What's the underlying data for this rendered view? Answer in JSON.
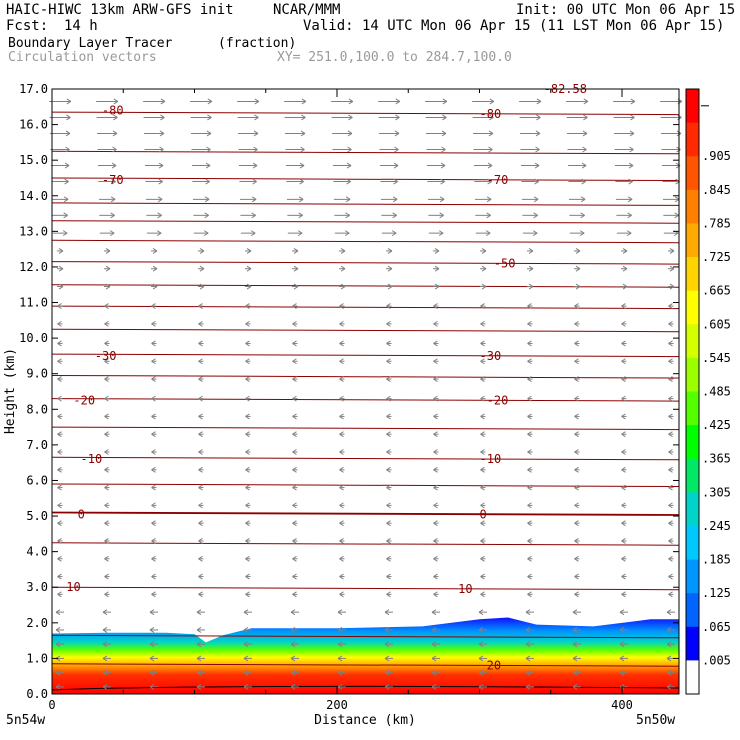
{
  "header": {
    "model": "HAIC-HIWC 13km ARW-GFS init",
    "center": "NCAR/MMM",
    "init": "Init: 00 UTC Mon 06 Apr 15",
    "fcst_label": "Fcst:",
    "fcst_value": "14 h",
    "valid": "Valid: 14 UTC Mon 06 Apr 15 (11 LST Mon 06 Apr 15)",
    "field": "Boundary Layer Tracer",
    "field_units": "(fraction)",
    "overlay": "Circulation vectors",
    "xy": "XY= 251.0,100.0 to 284.7,100.0"
  },
  "chart_data": {
    "type": "heatmap",
    "xlabel": "Distance (km)",
    "ylabel": "Height (km)",
    "xlim": [
      0,
      440
    ],
    "ylim": [
      0,
      17
    ],
    "x_ticks": [
      0,
      200,
      400
    ],
    "y_ticks": [
      "0.0",
      "1.0",
      "2.0",
      "3.0",
      "4.0",
      "5.0",
      "6.0",
      "7.0",
      "8.0",
      "9.0",
      "10.0",
      "11.0",
      "12.0",
      "13.0",
      "14.0",
      "15.0",
      "16.0",
      "17.0"
    ],
    "x_left_label": "5n54w",
    "x_right_label": "5n50w",
    "colorbar": {
      "labels": [
        ".905",
        ".845",
        ".785",
        ".725",
        ".665",
        ".605",
        ".545",
        ".485",
        ".425",
        ".365",
        ".305",
        ".245",
        ".185",
        ".125",
        ".065",
        ".005"
      ],
      "colors": [
        "#ff0000",
        "#ff2a00",
        "#ff5500",
        "#ff7f00",
        "#ffaa00",
        "#ffd400",
        "#ffff00",
        "#d4ff00",
        "#9cff00",
        "#54ff00",
        "#00ff00",
        "#00e866",
        "#00d4c8",
        "#00c8ff",
        "#0096ff",
        "#0064ff",
        "#0000ff",
        "#ffffff"
      ]
    },
    "tracer_top_km": [
      [
        0,
        1.7
      ],
      [
        40,
        1.72
      ],
      [
        80,
        1.72
      ],
      [
        100,
        1.68
      ],
      [
        108,
        1.45
      ],
      [
        120,
        1.65
      ],
      [
        140,
        1.85
      ],
      [
        200,
        1.85
      ],
      [
        260,
        1.9
      ],
      [
        300,
        2.1
      ],
      [
        320,
        2.15
      ],
      [
        340,
        1.95
      ],
      [
        380,
        1.9
      ],
      [
        420,
        2.1
      ],
      [
        440,
        2.1
      ]
    ],
    "isotherm_labels": [
      {
        "text": "-82.58",
        "x": 345,
        "y": 17.0
      },
      {
        "text": "-80",
        "x": 35,
        "y": 16.4
      },
      {
        "text": "-80",
        "x": 300,
        "y": 16.3
      },
      {
        "text": "-70",
        "x": 35,
        "y": 14.45
      },
      {
        "text": "-70",
        "x": 305,
        "y": 14.45
      },
      {
        "text": "-50",
        "x": 310,
        "y": 12.1
      },
      {
        "text": "-30",
        "x": 30,
        "y": 9.5
      },
      {
        "text": "-30",
        "x": 300,
        "y": 9.5
      },
      {
        "text": "-20",
        "x": 15,
        "y": 8.25
      },
      {
        "text": "-20",
        "x": 305,
        "y": 8.25
      },
      {
        "text": "-10",
        "x": 20,
        "y": 6.6
      },
      {
        "text": "-10",
        "x": 300,
        "y": 6.6
      },
      {
        "text": "0",
        "x": 18,
        "y": 5.05
      },
      {
        "text": "0",
        "x": 300,
        "y": 5.05
      },
      {
        "text": "10",
        "x": 10,
        "y": 3.0
      },
      {
        "text": "10",
        "x": 285,
        "y": 2.95
      },
      {
        "text": "20",
        "x": 305,
        "y": 0.8
      }
    ],
    "isotherm_levels_km": [
      16.3,
      15.2,
      14.45,
      13.75,
      13.25,
      12.7,
      12.1,
      11.45,
      10.85,
      10.2,
      9.5,
      8.9,
      8.25,
      7.45,
      6.6,
      5.85,
      5.05,
      4.2,
      2.95,
      1.6,
      0.8
    ],
    "vector_rows_km": [
      16.65,
      16.2,
      15.75,
      15.3,
      14.85,
      14.4,
      13.9,
      13.45,
      12.95,
      12.45,
      11.95,
      11.45,
      10.9,
      10.4,
      9.85,
      9.35,
      8.85,
      8.3,
      7.8,
      7.3,
      6.8,
      6.3,
      5.8,
      5.3,
      4.8,
      4.3,
      3.8,
      3.3,
      2.8,
      2.3,
      1.8,
      1.4,
      1.0,
      0.6,
      0.2
    ]
  }
}
